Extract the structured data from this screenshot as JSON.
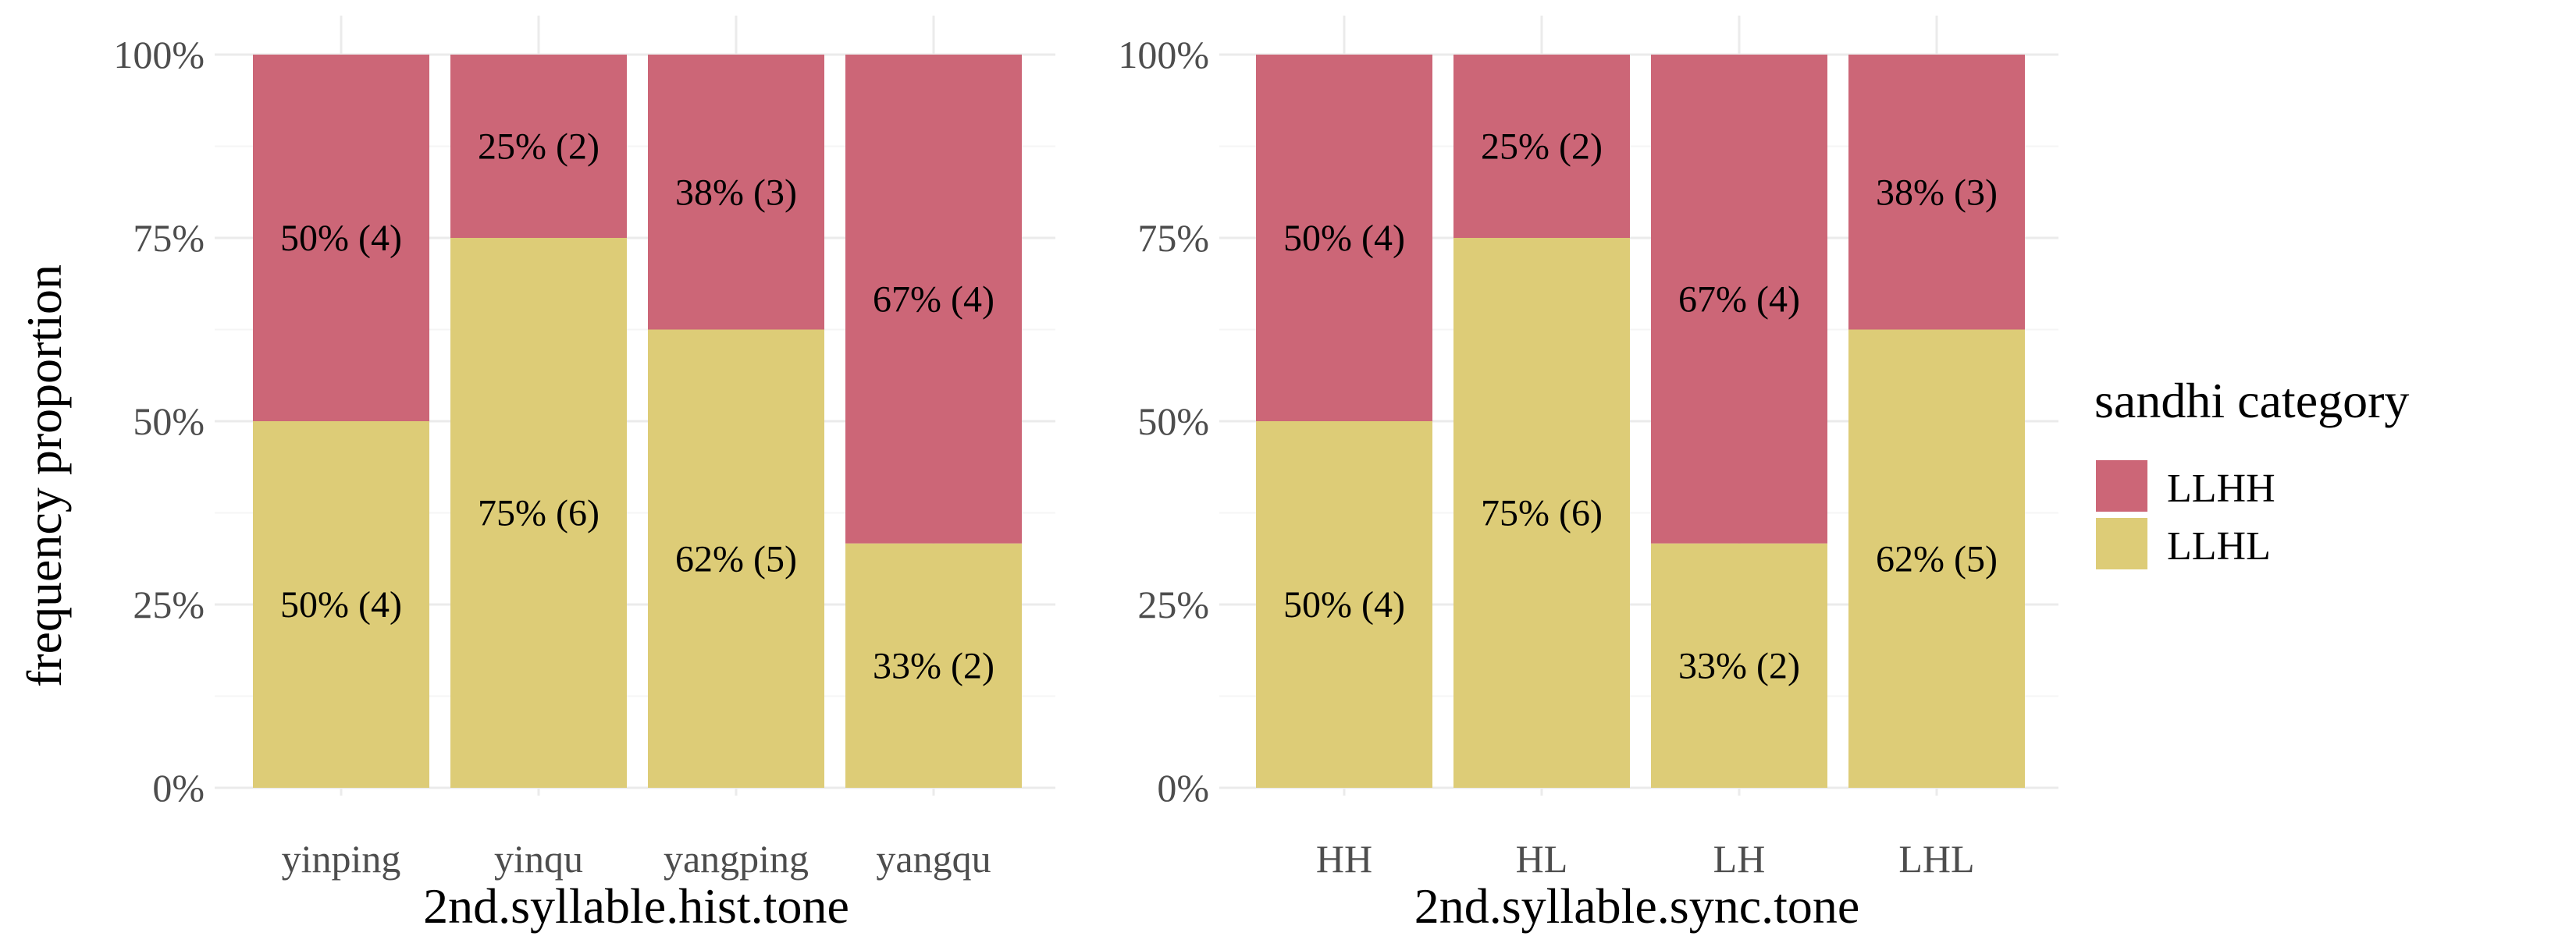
{
  "chart_data": [
    {
      "type": "bar",
      "stacked": true,
      "normalized": true,
      "categories": [
        "yinping",
        "yinqu",
        "yangping",
        "yangqu"
      ],
      "series": [
        {
          "name": "LLHL",
          "values": [
            50,
            75,
            62.5,
            33.3333
          ],
          "labels": [
            "50% (4)",
            "75% (6)",
            "62% (5)",
            "33% (2)"
          ]
        },
        {
          "name": "LLHH",
          "values": [
            50,
            25,
            37.5,
            66.6667
          ],
          "labels": [
            "50% (4)",
            "25% (2)",
            "38% (3)",
            "67% (4)"
          ]
        }
      ],
      "xlabel": "2nd.syllable.hist.tone",
      "ylabel": "frequency proportion",
      "ylim": [
        0,
        100
      ],
      "yticks": [
        "0%",
        "25%",
        "50%",
        "75%",
        "100%"
      ]
    },
    {
      "type": "bar",
      "stacked": true,
      "normalized": true,
      "categories": [
        "HH",
        "HL",
        "LH",
        "LHL"
      ],
      "series": [
        {
          "name": "LLHL",
          "values": [
            50,
            75,
            33.3333,
            62.5
          ],
          "labels": [
            "50% (4)",
            "75% (6)",
            "33% (2)",
            "62% (5)"
          ]
        },
        {
          "name": "LLHH",
          "values": [
            50,
            25,
            66.6667,
            37.5
          ],
          "labels": [
            "50% (4)",
            "25% (2)",
            "67% (4)",
            "38% (3)"
          ]
        }
      ],
      "xlabel": "2nd.syllable.sync.tone",
      "ylabel": "",
      "ylim": [
        0,
        100
      ],
      "yticks": [
        "0%",
        "25%",
        "50%",
        "75%",
        "100%"
      ]
    }
  ],
  "legend": {
    "title": "sandhi category",
    "items": [
      {
        "name": "LLHH",
        "color": "#cc6677"
      },
      {
        "name": "LLHL",
        "color": "#ddcc77"
      }
    ]
  },
  "colors": {
    "LLHH": "#cc6677",
    "LLHL": "#ddcc77"
  }
}
